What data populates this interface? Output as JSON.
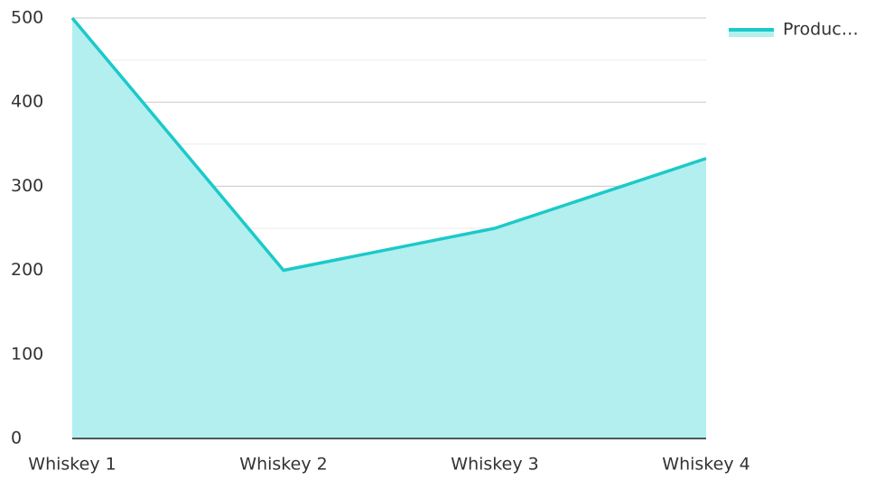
{
  "chart_data": {
    "type": "area",
    "categories": [
      "Whiskey 1",
      "Whiskey 2",
      "Whiskey 3",
      "Whiskey 4"
    ],
    "series": [
      {
        "name": "Produc…",
        "color": "#1cc9c9",
        "fill": "#b2efee",
        "values": [
          500,
          200,
          250,
          333
        ]
      }
    ],
    "ylim": [
      0,
      500
    ],
    "yticks": [
      0,
      100,
      200,
      300,
      400,
      500
    ],
    "minor_yticks": [
      50,
      150,
      250,
      350,
      450
    ],
    "grid": true,
    "legend": "top-right"
  }
}
